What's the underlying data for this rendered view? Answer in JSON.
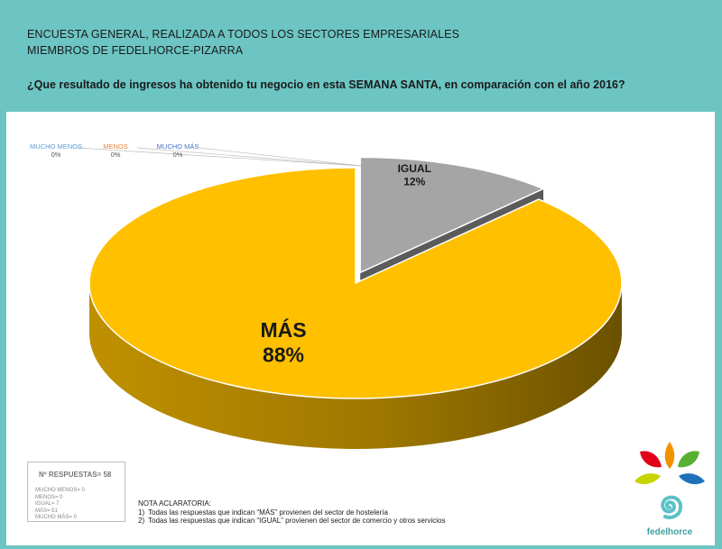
{
  "header": {
    "line1": "ENCUESTA GENERAL, REALIZADA A TODOS LOS SECTORES EMPRESARIALES",
    "line2": "MIEMBROS DE FEDELHORCE-PIZARRA",
    "question": "¿Que resultado de ingresos ha obtenido tu negocio en esta SEMANA SANTA, en comparación con el año 2016?"
  },
  "chart_data": {
    "type": "pie",
    "title": "",
    "categories": [
      "MUCHO MENOS",
      "MENOS",
      "MUCHO MÁS",
      "IGUAL",
      "MÁS"
    ],
    "values": [
      0,
      0,
      0,
      7,
      51
    ],
    "labels": [
      "0%",
      "0%",
      "0%",
      "12%",
      "88%"
    ],
    "colors": {
      "MUCHO MENOS": "#5b9bd5",
      "MENOS": "#ed7d31",
      "MUCHO MÁS": "#4472c4",
      "IGUAL": "#a5a5a5",
      "MÁS": "#ffc000"
    },
    "legend": "none",
    "style": "3d-exploded"
  },
  "responses_box": {
    "title": "Nº RESPUESTAS= 58",
    "lines": [
      "MUCHO MENOS= 0",
      "MENOS= 0",
      "IGUAL= 7",
      "MÁS= 51",
      "MUCHO MÁS= 0"
    ]
  },
  "note": {
    "title": "NOTA ACLARATORIA:",
    "items": [
      {
        "n": "1)",
        "text": "Todas las respuestas que indican “MÁS” provienen del sector de hostelería"
      },
      {
        "n": "2)",
        "text": "Todas las respuestas que indican “IGUAL” provienen del sector de comercio y otros servicios"
      }
    ]
  },
  "logo": {
    "text": "fedelhorce"
  }
}
